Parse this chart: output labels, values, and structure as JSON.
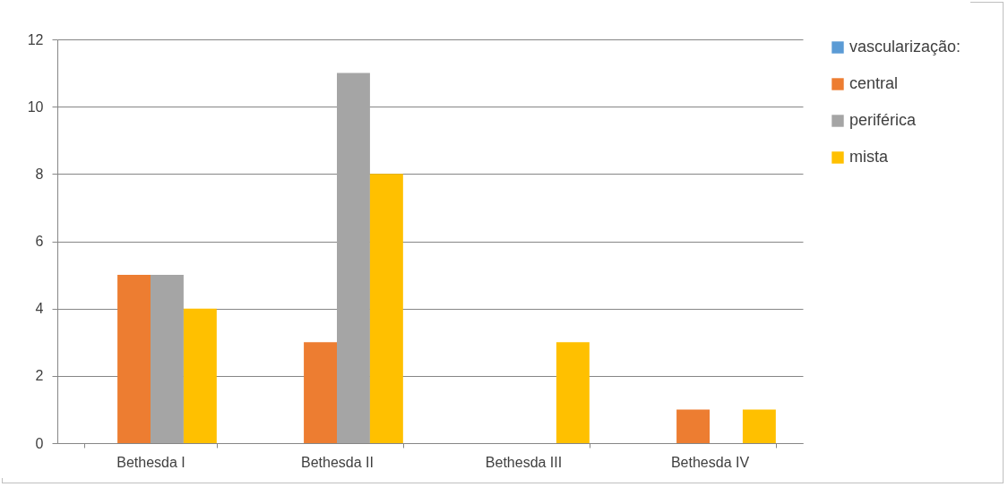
{
  "chart_data": {
    "type": "bar",
    "categories": [
      "Bethesda I",
      "Bethesda II",
      "Bethesda III",
      "Bethesda IV"
    ],
    "series": [
      {
        "name": "vascularização:",
        "color": "#5b9bd5",
        "values": [
          0,
          0,
          0,
          0
        ]
      },
      {
        "name": "central",
        "color": "#ed7d31",
        "values": [
          5,
          3,
          0,
          1
        ]
      },
      {
        "name": "periférica",
        "color": "#a5a5a5",
        "values": [
          5,
          11,
          0,
          0
        ]
      },
      {
        "name": "mista",
        "color": "#ffc000",
        "values": [
          4,
          8,
          3,
          1
        ]
      }
    ],
    "ylim": [
      0,
      12
    ],
    "yticks": [
      0,
      2,
      4,
      6,
      8,
      10,
      12
    ],
    "grid": "y",
    "legend": "right"
  }
}
